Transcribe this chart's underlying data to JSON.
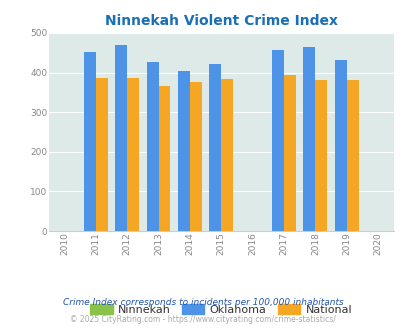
{
  "title": "Ninnekah Violent Crime Index",
  "title_color": "#1a6fb5",
  "years": [
    2010,
    2011,
    2012,
    2013,
    2014,
    2015,
    2016,
    2017,
    2018,
    2019,
    2020
  ],
  "bar_years": [
    2011,
    2012,
    2013,
    2014,
    2015,
    2017,
    2018,
    2019
  ],
  "ninnekah": [
    0,
    0,
    0,
    0,
    0,
    0,
    0,
    0
  ],
  "oklahoma": [
    453,
    469,
    428,
    405,
    421,
    458,
    465,
    431
  ],
  "national": [
    387,
    387,
    367,
    377,
    383,
    394,
    381,
    381
  ],
  "oklahoma_color": "#4d94e8",
  "national_color": "#f5a623",
  "ninnekah_color": "#8bc34a",
  "bg_color": "#deeae8",
  "ylim": [
    0,
    500
  ],
  "yticks": [
    0,
    100,
    200,
    300,
    400,
    500
  ],
  "bar_width": 0.38,
  "footnote1": "Crime Index corresponds to incidents per 100,000 inhabitants",
  "footnote2": "© 2025 CityRating.com - https://www.cityrating.com/crime-statistics/",
  "footnote1_color": "#2255aa",
  "footnote2_color": "#aaaaaa"
}
